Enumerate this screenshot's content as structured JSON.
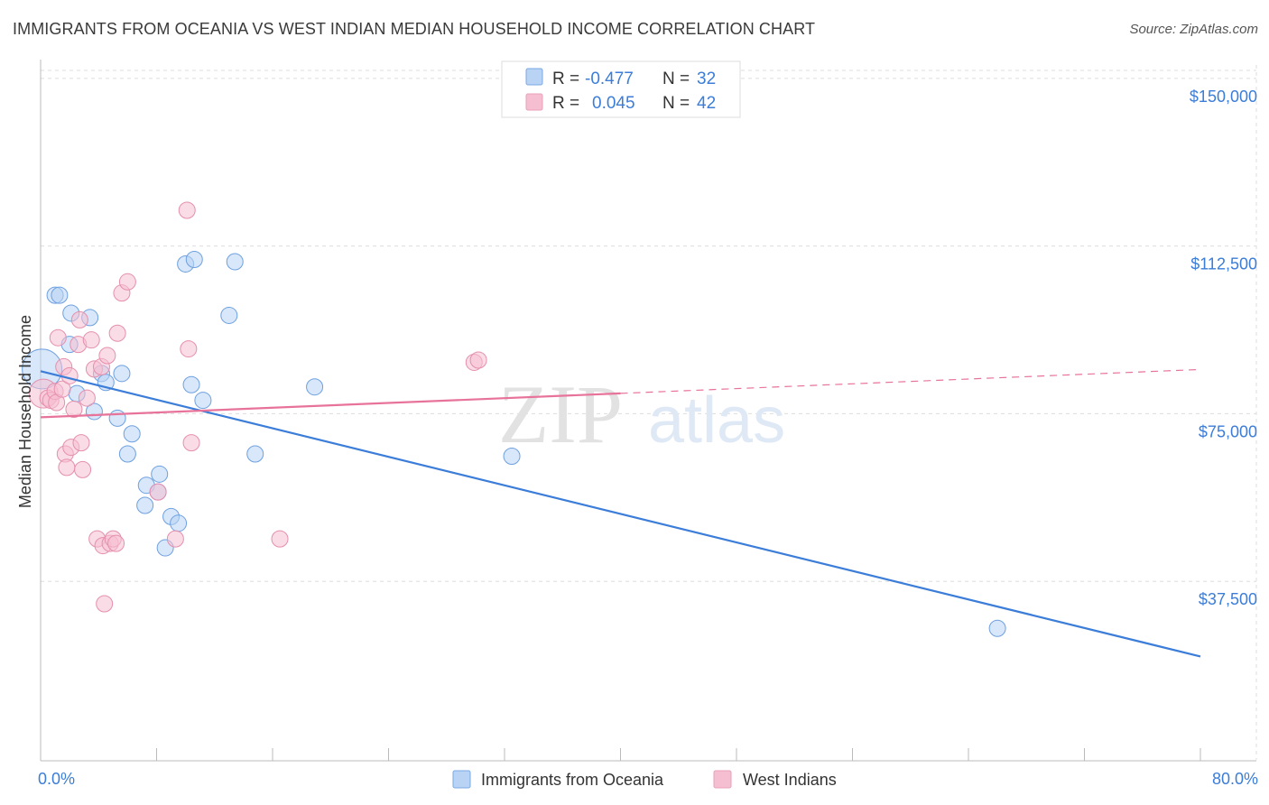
{
  "header": {
    "title": "IMMIGRANTS FROM OCEANIA VS WEST INDIAN MEDIAN HOUSEHOLD INCOME CORRELATION CHART",
    "source": "Source: ZipAtlas.com"
  },
  "colors": {
    "blue": "#3b7dd8",
    "blue_fill": "#b8d3f4",
    "pink": "#e8739a",
    "pink_fill": "#f6bfd1",
    "grid": "#dddddd",
    "watermark": "#e4e4e4"
  },
  "watermark": {
    "zip": "ZIP",
    "atlas": "atlas"
  },
  "legend": {
    "rows": [
      {
        "r_label": "R =",
        "r_value": "-0.477",
        "n_label": "N =",
        "n_value": "32"
      },
      {
        "r_label": "R =",
        "r_value": "0.045",
        "n_label": "N =",
        "n_value": "42"
      }
    ]
  },
  "chart_data": {
    "type": "scatter",
    "title": "IMMIGRANTS FROM OCEANIA VS WEST INDIAN MEDIAN HOUSEHOLD INCOME CORRELATION CHART",
    "xlabel": "",
    "ylabel": "Median Household Income",
    "xlim": [
      0,
      80
    ],
    "ylim": [
      0,
      153000
    ],
    "y_ticks": [
      {
        "value": 37500,
        "label": "$37,500"
      },
      {
        "value": 75000,
        "label": "$75,000"
      },
      {
        "value": 112500,
        "label": "$112,500"
      },
      {
        "value": 150000,
        "label": "$150,000"
      }
    ],
    "x_tick_labels": [
      {
        "value": 0,
        "label": "0.0%"
      },
      {
        "value": 80,
        "label": "80.0%"
      }
    ],
    "x_minor_ticks": [
      0,
      8,
      16,
      24,
      32,
      40,
      48,
      56,
      64,
      72,
      80
    ],
    "grid": true,
    "legend_position": "top-center",
    "series": [
      {
        "name": "Immigrants from Oceania",
        "color": "#3b7dd8",
        "R": -0.477,
        "N": 32,
        "trend": {
          "x": [
            0,
            80
          ],
          "y": [
            84500,
            20700
          ],
          "dashed_from": null
        },
        "points": [
          [
            0.1,
            85000,
            22
          ],
          [
            1.0,
            101500,
            9
          ],
          [
            1.3,
            101500,
            9
          ],
          [
            2.0,
            90500,
            9
          ],
          [
            2.1,
            97500,
            9
          ],
          [
            2.5,
            79500,
            9
          ],
          [
            3.4,
            96500,
            9
          ],
          [
            3.7,
            75500,
            9
          ],
          [
            4.2,
            84000,
            9
          ],
          [
            4.5,
            82000,
            9
          ],
          [
            5.3,
            74000,
            9
          ],
          [
            5.6,
            84000,
            9
          ],
          [
            6.0,
            66000,
            9
          ],
          [
            6.3,
            70500,
            9
          ],
          [
            7.2,
            54500,
            9
          ],
          [
            7.3,
            59000,
            9
          ],
          [
            8.1,
            57500,
            9
          ],
          [
            8.2,
            61500,
            9
          ],
          [
            8.6,
            45000,
            9
          ],
          [
            9.0,
            52000,
            9
          ],
          [
            9.5,
            50500,
            9
          ],
          [
            10.0,
            108500,
            9
          ],
          [
            10.4,
            81500,
            9
          ],
          [
            10.6,
            109500,
            9
          ],
          [
            11.2,
            78000,
            9
          ],
          [
            13.0,
            97000,
            9
          ],
          [
            13.4,
            109000,
            9
          ],
          [
            14.8,
            66000,
            9
          ],
          [
            18.9,
            81000,
            9
          ],
          [
            32.5,
            65500,
            9
          ],
          [
            66.0,
            27000,
            9
          ]
        ]
      },
      {
        "name": "West Indians",
        "color": "#e8739a",
        "R": 0.045,
        "N": 42,
        "trend": {
          "x": [
            0,
            80
          ],
          "y": [
            74200,
            84900
          ],
          "dashed_from": 40
        },
        "points": [
          [
            0.2,
            79500,
            16
          ],
          [
            0.5,
            78500,
            9
          ],
          [
            0.7,
            78000,
            9
          ],
          [
            1.0,
            80000,
            9
          ],
          [
            1.1,
            77500,
            9
          ],
          [
            1.2,
            92000,
            9
          ],
          [
            1.5,
            80500,
            9
          ],
          [
            1.6,
            85500,
            9
          ],
          [
            1.7,
            66000,
            9
          ],
          [
            1.8,
            63000,
            9
          ],
          [
            2.0,
            83500,
            9
          ],
          [
            2.1,
            67500,
            9
          ],
          [
            2.3,
            76000,
            9
          ],
          [
            2.6,
            90500,
            9
          ],
          [
            2.7,
            96000,
            9
          ],
          [
            2.8,
            68500,
            9
          ],
          [
            2.9,
            62500,
            9
          ],
          [
            3.2,
            78500,
            9
          ],
          [
            3.5,
            91500,
            9
          ],
          [
            3.7,
            85000,
            9
          ],
          [
            3.9,
            47000,
            9
          ],
          [
            4.2,
            85500,
            9
          ],
          [
            4.3,
            45500,
            9
          ],
          [
            4.4,
            32500,
            9
          ],
          [
            4.6,
            88000,
            9
          ],
          [
            4.8,
            46000,
            9
          ],
          [
            5.0,
            47000,
            9
          ],
          [
            5.2,
            46000,
            9
          ],
          [
            5.3,
            93000,
            9
          ],
          [
            5.6,
            102000,
            9
          ],
          [
            6.0,
            104500,
            9
          ],
          [
            8.1,
            57500,
            9
          ],
          [
            9.3,
            47000,
            9
          ],
          [
            10.1,
            120500,
            9
          ],
          [
            10.2,
            89500,
            9
          ],
          [
            10.4,
            68500,
            9
          ],
          [
            16.5,
            47000,
            9
          ],
          [
            29.9,
            86500,
            9
          ],
          [
            30.2,
            87000,
            9
          ]
        ]
      }
    ]
  }
}
